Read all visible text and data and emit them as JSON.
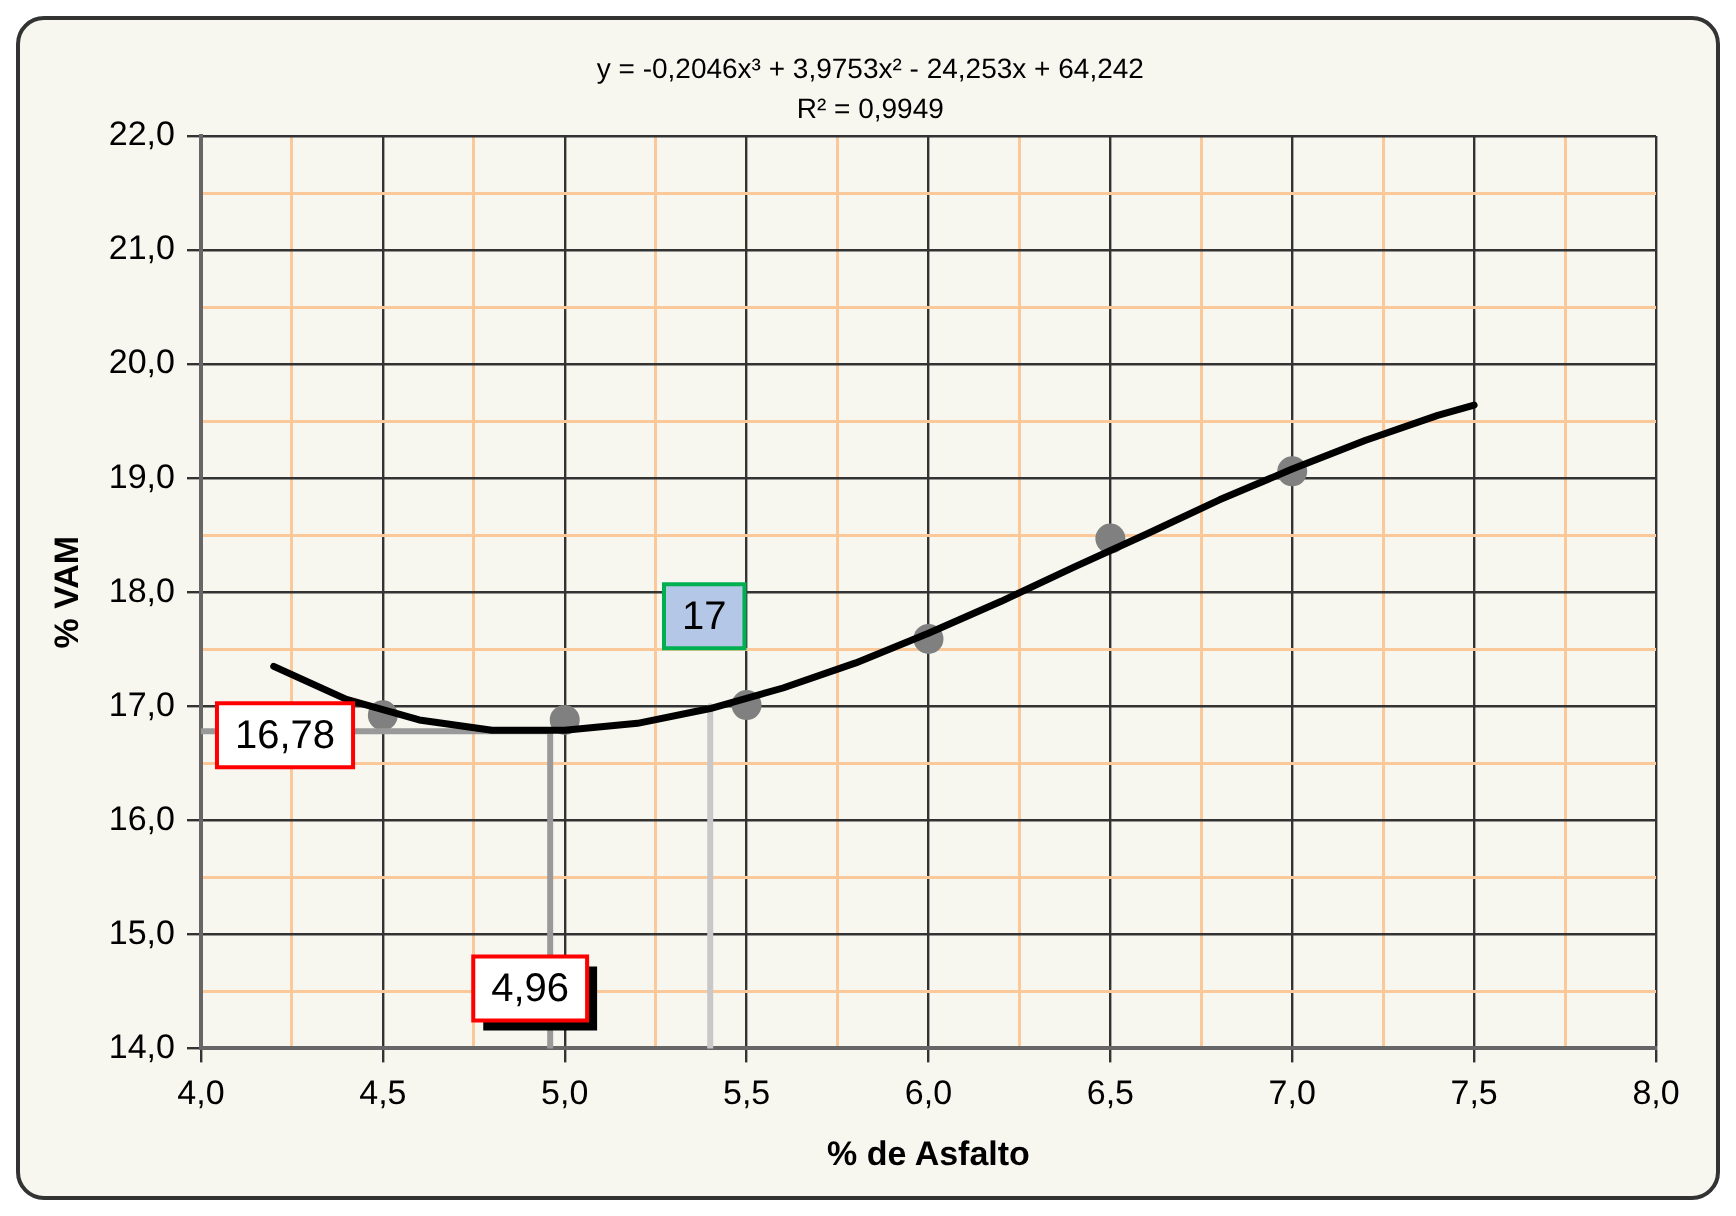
{
  "chart_data": {
    "type": "scatter",
    "xlabel": "% de Asfalto",
    "ylabel": "% VAM",
    "series": [
      {
        "type": "scatter",
        "color": "#808080",
        "x": [
          4.5,
          5.0,
          5.5,
          6.0,
          6.5,
          7.0
        ],
        "values": [
          16.92,
          16.88,
          17.01,
          17.59,
          18.47,
          19.06
        ]
      },
      {
        "type": "line",
        "color": "#000000",
        "marker": "none",
        "x": [
          4.2,
          4.4,
          4.6,
          4.8,
          5.0,
          5.2,
          5.4,
          5.6,
          5.8,
          6.0,
          6.2,
          6.4,
          6.6,
          6.8,
          7.0,
          7.2,
          7.4,
          7.5
        ],
        "values": [
          17.35,
          17.06,
          16.88,
          16.79,
          16.79,
          16.85,
          16.98,
          17.16,
          17.38,
          17.64,
          17.92,
          18.22,
          18.51,
          18.81,
          19.08,
          19.33,
          19.55,
          19.64
        ]
      },
      {
        "type": "line",
        "color": "#999999",
        "marker": "none",
        "x": [
          4.96,
          4.96,
          4.0
        ],
        "values": [
          14.0,
          16.78,
          16.78
        ]
      },
      {
        "type": "line",
        "color": "#c8c8c8",
        "marker": "none",
        "x": [
          5.4,
          5.4
        ],
        "values": [
          14.0,
          17.0
        ]
      }
    ],
    "xlim": [
      4.0,
      8.0
    ],
    "xticks": [
      {
        "value": 4.0,
        "label": "4,0"
      },
      {
        "value": 4.25,
        "label": null
      },
      {
        "value": 4.5,
        "label": "4,5"
      },
      {
        "value": 4.75,
        "label": null
      },
      {
        "value": 5.0,
        "label": "5,0"
      },
      {
        "value": 5.25,
        "label": null
      },
      {
        "value": 5.5,
        "label": "5,5"
      },
      {
        "value": 5.75,
        "label": null
      },
      {
        "value": 6.0,
        "label": "6,0"
      },
      {
        "value": 6.25,
        "label": null
      },
      {
        "value": 6.5,
        "label": "6,5"
      },
      {
        "value": 6.75,
        "label": null
      },
      {
        "value": 7.0,
        "label": "7,0"
      },
      {
        "value": 7.25,
        "label": null
      },
      {
        "value": 7.5,
        "label": "7,5"
      },
      {
        "value": 7.75,
        "label": null
      },
      {
        "value": 8.0,
        "label": "8,0"
      }
    ],
    "ylim": [
      14.0,
      22.0
    ],
    "yticks": [
      {
        "value": 14.0,
        "label": "14,0"
      },
      {
        "value": 14.5,
        "label": null
      },
      {
        "value": 15.0,
        "label": "15,0"
      },
      {
        "value": 15.5,
        "label": null
      },
      {
        "value": 16.0,
        "label": "16,0"
      },
      {
        "value": 16.5,
        "label": null
      },
      {
        "value": 17.0,
        "label": "17,0"
      },
      {
        "value": 17.5,
        "label": null
      },
      {
        "value": 18.0,
        "label": "18,0"
      },
      {
        "value": 18.5,
        "label": null
      },
      {
        "value": 19.0,
        "label": "19,0"
      },
      {
        "value": 19.5,
        "label": null
      },
      {
        "value": 20.0,
        "label": "20,0"
      },
      {
        "value": 20.5,
        "label": null
      },
      {
        "value": 21.0,
        "label": "21,0"
      },
      {
        "value": 21.5,
        "label": null
      },
      {
        "value": 22.0,
        "label": "22,0"
      }
    ],
    "grid": true,
    "legend": false,
    "marker": "circle",
    "annotations": [
      "y = -0,2046x³ + 3,9753x² - 24,253x + 64,242",
      "R² = 0,9949",
      {
        "text": "16,78",
        "y": 16.78
      },
      {
        "text": "4,96",
        "x": 4.96
      },
      {
        "text": "17",
        "x": 5.4,
        "y": 17.0
      }
    ]
  }
}
